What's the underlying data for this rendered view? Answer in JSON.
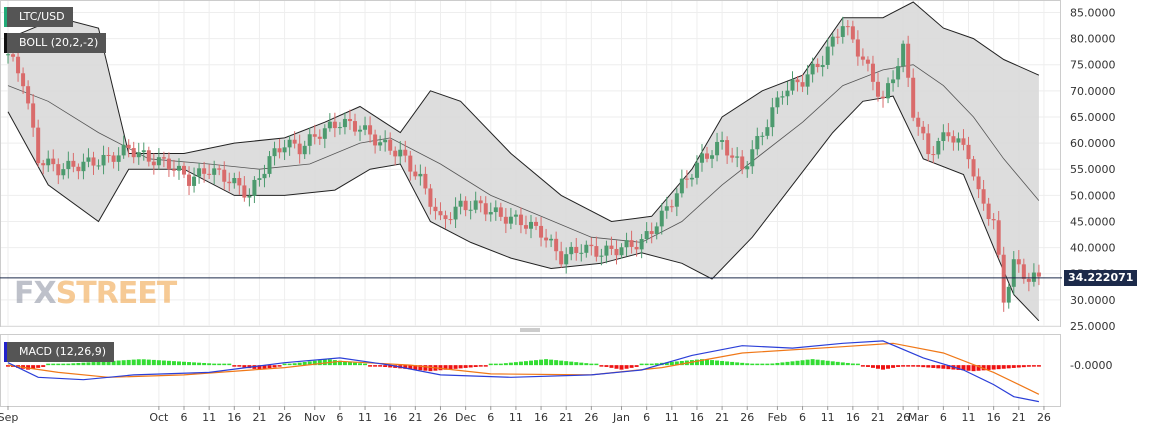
{
  "header": {
    "symbol_label": "LTC/USD",
    "indicator_label": "BOLL (20,2,-2)",
    "macd_label": "MACD (12,26,9)",
    "current_price": "34.222071",
    "logo_fx": "FX",
    "logo_street": "STREET"
  },
  "colors": {
    "up": "#4c9a6e",
    "down": "#d96b6b",
    "band_fill": "#d9d9d9",
    "price_line": "#1c2a4a",
    "macd_line": "#2b3fd8",
    "signal_line": "#f07818",
    "hist_pos": "#33dd33",
    "hist_neg": "#ee1111"
  },
  "chart_data": [
    {
      "type": "candlestick",
      "title": "LTC/USD",
      "indicator": "BOLL (20,2,-2)",
      "ylim": [
        25,
        87
      ],
      "y_ticks": [
        "85.0000",
        "80.0000",
        "75.0000",
        "70.0000",
        "65.0000",
        "60.0000",
        "55.0000",
        "50.0000",
        "45.0000",
        "40.0000",
        "35.0000",
        "30.0000",
        "25.0000"
      ],
      "y_tick_values": [
        85,
        80,
        75,
        70,
        65,
        60,
        55,
        50,
        45,
        40,
        35,
        30,
        25
      ],
      "x_ticks": [
        "Sep",
        "Oct",
        "6",
        "11",
        "16",
        "21",
        "26",
        "Nov",
        "6",
        "11",
        "16",
        "21",
        "26",
        "Dec",
        "6",
        "11",
        "16",
        "21",
        "26",
        "Jan",
        "6",
        "11",
        "16",
        "21",
        "26",
        "Feb",
        "6",
        "11",
        "16",
        "21",
        "26",
        "Mar",
        "6",
        "11",
        "16",
        "21",
        "26"
      ],
      "x_tick_days": [
        0,
        30,
        35,
        40,
        45,
        50,
        55,
        61,
        66,
        71,
        76,
        81,
        86,
        91,
        96,
        101,
        106,
        111,
        116,
        122,
        127,
        132,
        137,
        142,
        147,
        153,
        158,
        163,
        168,
        173,
        178,
        181,
        186,
        191,
        196,
        201,
        206
      ],
      "last_price": 34.22,
      "close_series": [
        {
          "day": 0,
          "close": 77
        },
        {
          "day": 3,
          "close": 72
        },
        {
          "day": 6,
          "close": 57
        },
        {
          "day": 10,
          "close": 55
        },
        {
          "day": 15,
          "close": 56
        },
        {
          "day": 20,
          "close": 57
        },
        {
          "day": 24,
          "close": 59
        },
        {
          "day": 28,
          "close": 57
        },
        {
          "day": 32,
          "close": 56
        },
        {
          "day": 36,
          "close": 53
        },
        {
          "day": 40,
          "close": 55
        },
        {
          "day": 44,
          "close": 53
        },
        {
          "day": 48,
          "close": 50
        },
        {
          "day": 52,
          "close": 57
        },
        {
          "day": 55,
          "close": 60
        },
        {
          "day": 58,
          "close": 59
        },
        {
          "day": 62,
          "close": 62
        },
        {
          "day": 66,
          "close": 64
        },
        {
          "day": 70,
          "close": 63
        },
        {
          "day": 74,
          "close": 60
        },
        {
          "day": 78,
          "close": 58
        },
        {
          "day": 82,
          "close": 53
        },
        {
          "day": 86,
          "close": 45
        },
        {
          "day": 90,
          "close": 48
        },
        {
          "day": 94,
          "close": 48
        },
        {
          "day": 98,
          "close": 46
        },
        {
          "day": 102,
          "close": 45
        },
        {
          "day": 106,
          "close": 43
        },
        {
          "day": 110,
          "close": 38
        },
        {
          "day": 114,
          "close": 40
        },
        {
          "day": 118,
          "close": 39
        },
        {
          "day": 122,
          "close": 40
        },
        {
          "day": 126,
          "close": 41
        },
        {
          "day": 130,
          "close": 46
        },
        {
          "day": 134,
          "close": 52
        },
        {
          "day": 138,
          "close": 57
        },
        {
          "day": 142,
          "close": 60
        },
        {
          "day": 146,
          "close": 55
        },
        {
          "day": 150,
          "close": 62
        },
        {
          "day": 154,
          "close": 70
        },
        {
          "day": 158,
          "close": 72
        },
        {
          "day": 162,
          "close": 76
        },
        {
          "day": 166,
          "close": 83
        },
        {
          "day": 170,
          "close": 76
        },
        {
          "day": 174,
          "close": 68
        },
        {
          "day": 178,
          "close": 78
        },
        {
          "day": 180,
          "close": 66
        },
        {
          "day": 183,
          "close": 58
        },
        {
          "day": 187,
          "close": 62
        },
        {
          "day": 191,
          "close": 58
        },
        {
          "day": 193,
          "close": 50
        },
        {
          "day": 196,
          "close": 45
        },
        {
          "day": 198,
          "close": 30
        },
        {
          "day": 200,
          "close": 37
        },
        {
          "day": 203,
          "close": 34
        },
        {
          "day": 205,
          "close": 34.2
        }
      ],
      "boll_upper": [
        {
          "day": 0,
          "close": 80
        },
        {
          "day": 10,
          "close": 84
        },
        {
          "day": 18,
          "close": 82
        },
        {
          "day": 24,
          "close": 58
        },
        {
          "day": 35,
          "close": 58
        },
        {
          "day": 45,
          "close": 60
        },
        {
          "day": 55,
          "close": 61
        },
        {
          "day": 63,
          "close": 64
        },
        {
          "day": 70,
          "close": 67
        },
        {
          "day": 78,
          "close": 62
        },
        {
          "day": 84,
          "close": 70
        },
        {
          "day": 90,
          "close": 68
        },
        {
          "day": 100,
          "close": 58
        },
        {
          "day": 110,
          "close": 50
        },
        {
          "day": 120,
          "close": 45
        },
        {
          "day": 128,
          "close": 46
        },
        {
          "day": 136,
          "close": 55
        },
        {
          "day": 142,
          "close": 65
        },
        {
          "day": 150,
          "close": 70
        },
        {
          "day": 158,
          "close": 73
        },
        {
          "day": 166,
          "close": 84
        },
        {
          "day": 174,
          "close": 84
        },
        {
          "day": 180,
          "close": 87
        },
        {
          "day": 186,
          "close": 82
        },
        {
          "day": 192,
          "close": 80
        },
        {
          "day": 198,
          "close": 76
        },
        {
          "day": 205,
          "close": 73
        }
      ],
      "boll_middle": [
        {
          "day": 0,
          "close": 71
        },
        {
          "day": 8,
          "close": 68
        },
        {
          "day": 18,
          "close": 62
        },
        {
          "day": 28,
          "close": 57
        },
        {
          "day": 40,
          "close": 56
        },
        {
          "day": 50,
          "close": 55
        },
        {
          "day": 60,
          "close": 56
        },
        {
          "day": 70,
          "close": 60
        },
        {
          "day": 76,
          "close": 61
        },
        {
          "day": 86,
          "close": 56
        },
        {
          "day": 96,
          "close": 50
        },
        {
          "day": 106,
          "close": 46
        },
        {
          "day": 116,
          "close": 42
        },
        {
          "day": 126,
          "close": 41
        },
        {
          "day": 134,
          "close": 45
        },
        {
          "day": 142,
          "close": 52
        },
        {
          "day": 150,
          "close": 58
        },
        {
          "day": 158,
          "close": 64
        },
        {
          "day": 166,
          "close": 71
        },
        {
          "day": 174,
          "close": 74
        },
        {
          "day": 180,
          "close": 75
        },
        {
          "day": 186,
          "close": 71
        },
        {
          "day": 192,
          "close": 65
        },
        {
          "day": 198,
          "close": 57
        },
        {
          "day": 205,
          "close": 49
        }
      ],
      "boll_lower": [
        {
          "day": 0,
          "close": 66
        },
        {
          "day": 8,
          "close": 52
        },
        {
          "day": 18,
          "close": 45
        },
        {
          "day": 24,
          "close": 55
        },
        {
          "day": 35,
          "close": 55
        },
        {
          "day": 45,
          "close": 50
        },
        {
          "day": 55,
          "close": 50
        },
        {
          "day": 65,
          "close": 51
        },
        {
          "day": 72,
          "close": 55
        },
        {
          "day": 78,
          "close": 56
        },
        {
          "day": 84,
          "close": 45
        },
        {
          "day": 92,
          "close": 41
        },
        {
          "day": 100,
          "close": 38
        },
        {
          "day": 108,
          "close": 36
        },
        {
          "day": 118,
          "close": 37
        },
        {
          "day": 126,
          "close": 39
        },
        {
          "day": 134,
          "close": 37
        },
        {
          "day": 140,
          "close": 34
        },
        {
          "day": 148,
          "close": 42
        },
        {
          "day": 156,
          "close": 52
        },
        {
          "day": 164,
          "close": 62
        },
        {
          "day": 170,
          "close": 68
        },
        {
          "day": 176,
          "close": 69
        },
        {
          "day": 182,
          "close": 57
        },
        {
          "day": 190,
          "close": 54
        },
        {
          "day": 196,
          "close": 40
        },
        {
          "day": 200,
          "close": 31
        },
        {
          "day": 205,
          "close": 26
        }
      ]
    },
    {
      "type": "macd",
      "title": "MACD (12,26,9)",
      "ylim": [
        -8,
        6
      ],
      "y_ticks": [
        "-0.0000"
      ],
      "y_tick_values": [
        0
      ],
      "macd": [
        {
          "day": 0,
          "v": 0.5
        },
        {
          "day": 6,
          "v": -2.5
        },
        {
          "day": 15,
          "v": -3
        },
        {
          "day": 25,
          "v": -2
        },
        {
          "day": 40,
          "v": -1.5
        },
        {
          "day": 55,
          "v": 0.5
        },
        {
          "day": 66,
          "v": 1.5
        },
        {
          "day": 76,
          "v": 0
        },
        {
          "day": 86,
          "v": -2
        },
        {
          "day": 100,
          "v": -2.5
        },
        {
          "day": 116,
          "v": -2
        },
        {
          "day": 126,
          "v": -1
        },
        {
          "day": 136,
          "v": 2
        },
        {
          "day": 146,
          "v": 4
        },
        {
          "day": 156,
          "v": 3.5
        },
        {
          "day": 166,
          "v": 4.5
        },
        {
          "day": 174,
          "v": 5
        },
        {
          "day": 182,
          "v": 1.5
        },
        {
          "day": 190,
          "v": -1
        },
        {
          "day": 196,
          "v": -4
        },
        {
          "day": 200,
          "v": -6.5
        },
        {
          "day": 205,
          "v": -7.5
        }
      ],
      "signal": [
        {
          "day": 0,
          "v": 0
        },
        {
          "day": 10,
          "v": -1.5
        },
        {
          "day": 20,
          "v": -2.5
        },
        {
          "day": 35,
          "v": -2
        },
        {
          "day": 55,
          "v": -0.5
        },
        {
          "day": 66,
          "v": 0.8
        },
        {
          "day": 80,
          "v": 0
        },
        {
          "day": 96,
          "v": -1.8
        },
        {
          "day": 116,
          "v": -2
        },
        {
          "day": 130,
          "v": -0.5
        },
        {
          "day": 146,
          "v": 2.5
        },
        {
          "day": 166,
          "v": 3.8
        },
        {
          "day": 176,
          "v": 4.5
        },
        {
          "day": 186,
          "v": 2.5
        },
        {
          "day": 196,
          "v": -1.5
        },
        {
          "day": 205,
          "v": -6
        }
      ],
      "histogram": [
        {
          "from": 0,
          "to": 8,
          "sign": "neg"
        },
        {
          "from": 8,
          "to": 45,
          "sign": "pos"
        },
        {
          "from": 45,
          "to": 55,
          "sign": "neg"
        },
        {
          "from": 55,
          "to": 72,
          "sign": "pos"
        },
        {
          "from": 72,
          "to": 96,
          "sign": "neg"
        },
        {
          "from": 96,
          "to": 118,
          "sign": "pos"
        },
        {
          "from": 118,
          "to": 126,
          "sign": "neg"
        },
        {
          "from": 126,
          "to": 150,
          "sign": "pos"
        },
        {
          "from": 150,
          "to": 170,
          "sign": "pos"
        },
        {
          "from": 170,
          "to": 178,
          "sign": "neg"
        },
        {
          "from": 178,
          "to": 206,
          "sign": "neg"
        }
      ]
    }
  ]
}
